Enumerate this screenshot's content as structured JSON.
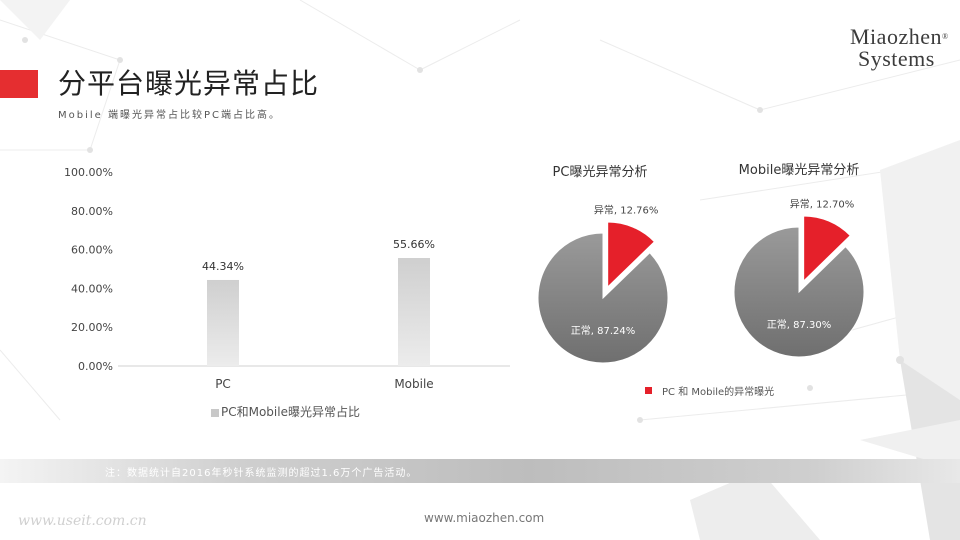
{
  "header": {
    "title": "分平台曝光异常占比",
    "subtitle": "Mobile 端曝光异常占比较PC端占比高。"
  },
  "logo": {
    "line1": "Miaozhen",
    "line2": "Systems",
    "reg": "®"
  },
  "colors": {
    "accent_red": "#e52e30",
    "pie_red": "#e5202a",
    "pie_gray": "#8a8a8a",
    "bar_gray": "#d6d6d6"
  },
  "pie_legend": "PC 和 Mobile的异常曝光",
  "note": "注：数据统计自2016年秒针系统监测的超过1.6万个广告活动。",
  "footer_url": "www.miaozhen.com",
  "watermark": "www.useit.com.cn",
  "chart_data": [
    {
      "type": "bar",
      "categories": [
        "PC",
        "Mobile"
      ],
      "values": [
        44.34,
        55.66
      ],
      "data_labels": [
        "44.34%",
        "55.66%"
      ],
      "series": [
        {
          "name": "PC和Mobile曝光异常占比",
          "values": [
            44.34,
            55.66
          ]
        }
      ],
      "ylim": [
        0,
        100
      ],
      "yticks": [
        "0.00%",
        "20.00%",
        "40.00%",
        "60.00%",
        "80.00%",
        "100.00%"
      ],
      "grid": false,
      "legend": "bottom"
    },
    {
      "type": "pie",
      "title": "PC曝光异常分析",
      "slices": [
        {
          "label": "异常",
          "value": 12.76,
          "text": "异常, 12.76%",
          "color": "#e5202a",
          "exploded": true
        },
        {
          "label": "正常",
          "value": 87.24,
          "text": "正常, 87.24%",
          "color": "#8a8a8a",
          "exploded": false
        }
      ]
    },
    {
      "type": "pie",
      "title": "Mobile曝光异常分析",
      "slices": [
        {
          "label": "异常",
          "value": 12.7,
          "text": "异常, 12.70%",
          "color": "#e5202a",
          "exploded": true
        },
        {
          "label": "正常",
          "value": 87.3,
          "text": "正常, 87.30%",
          "color": "#8a8a8a",
          "exploded": false
        }
      ]
    }
  ]
}
